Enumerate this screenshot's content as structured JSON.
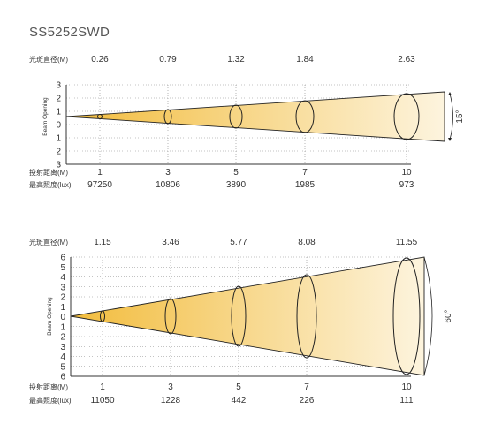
{
  "title": "SS5252SWD",
  "beam_opening_label": "Beam Opening",
  "beam_diameter_label": "光斑直径(M)",
  "distance_label": "投射距离(M)",
  "illuminance_label": "最高照度(lux)",
  "colors": {
    "beam_core": "#f3c24a",
    "beam_edge": "#fdf3dc",
    "grid_dot": "#888888",
    "axis": "#333333"
  },
  "diagrams": [
    {
      "angle_label": "15°",
      "y_ticks": [
        "3",
        "2",
        "1",
        "0",
        "1",
        "2",
        "3"
      ],
      "distances": [
        "1",
        "3",
        "5",
        "7",
        "10"
      ],
      "diameters": [
        "0.26",
        "0.79",
        "1.32",
        "1.84",
        "2.63"
      ],
      "illuminance": [
        "97250",
        "10806",
        "3890",
        "1985",
        "973"
      ]
    },
    {
      "angle_label": "60°",
      "y_ticks": [
        "6",
        "5",
        "4",
        "3",
        "2",
        "1",
        "0",
        "1",
        "2",
        "3",
        "4",
        "5",
        "6"
      ],
      "distances": [
        "1",
        "3",
        "5",
        "7",
        "10"
      ],
      "diameters": [
        "1.15",
        "3.46",
        "5.77",
        "8.08",
        "11.55"
      ],
      "illuminance": [
        "11050",
        "1228",
        "442",
        "226",
        "111"
      ]
    }
  ]
}
